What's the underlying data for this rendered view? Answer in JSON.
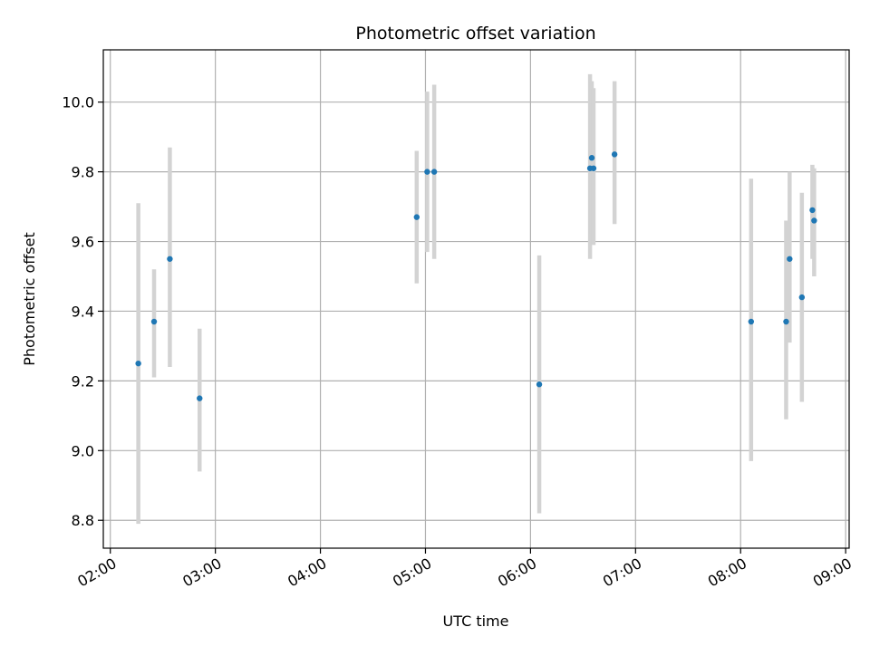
{
  "chart_data": {
    "type": "scatter",
    "title": "Photometric offset variation",
    "xlabel": "UTC time",
    "ylabel": "Photometric offset",
    "x_axis_type": "time",
    "xlim": [
      "01:56",
      "09:02"
    ],
    "ylim": [
      8.72,
      10.15
    ],
    "x_ticks": [
      "02:00",
      "03:00",
      "04:00",
      "05:00",
      "06:00",
      "07:00",
      "08:00",
      "09:00"
    ],
    "y_ticks": [
      8.8,
      9.0,
      9.2,
      9.4,
      9.6,
      9.8,
      10.0
    ],
    "y_tick_labels": [
      "8.8",
      "9.0",
      "9.2",
      "9.4",
      "9.6",
      "9.8",
      "10.0"
    ],
    "grid": true,
    "legend": false,
    "colors": {
      "points": "#1f77b4",
      "errorbars": "#d3d3d3",
      "grid": "#b0b0b0",
      "axes": "#000000"
    },
    "points": [
      {
        "x": "02:16",
        "y": 9.25,
        "ylow": 8.79,
        "yhigh": 9.71
      },
      {
        "x": "02:25",
        "y": 9.37,
        "ylow": 9.21,
        "yhigh": 9.52
      },
      {
        "x": "02:34",
        "y": 9.55,
        "ylow": 9.24,
        "yhigh": 9.87
      },
      {
        "x": "02:51",
        "y": 9.15,
        "ylow": 8.94,
        "yhigh": 9.35
      },
      {
        "x": "04:55",
        "y": 9.67,
        "ylow": 9.48,
        "yhigh": 9.86
      },
      {
        "x": "05:01",
        "y": 9.8,
        "ylow": 9.57,
        "yhigh": 10.03
      },
      {
        "x": "05:05",
        "y": 9.8,
        "ylow": 9.55,
        "yhigh": 10.05
      },
      {
        "x": "06:05",
        "y": 9.19,
        "ylow": 8.82,
        "yhigh": 9.56
      },
      {
        "x": "06:34",
        "y": 9.81,
        "ylow": 9.55,
        "yhigh": 10.08
      },
      {
        "x": "06:35",
        "y": 9.84,
        "ylow": 9.62,
        "yhigh": 10.06
      },
      {
        "x": "06:36",
        "y": 9.81,
        "ylow": 9.59,
        "yhigh": 10.04
      },
      {
        "x": "06:48",
        "y": 9.85,
        "ylow": 9.65,
        "yhigh": 10.06
      },
      {
        "x": "08:06",
        "y": 9.37,
        "ylow": 8.97,
        "yhigh": 9.78
      },
      {
        "x": "08:26",
        "y": 9.37,
        "ylow": 9.09,
        "yhigh": 9.66
      },
      {
        "x": "08:28",
        "y": 9.55,
        "ylow": 9.31,
        "yhigh": 9.8
      },
      {
        "x": "08:35",
        "y": 9.44,
        "ylow": 9.14,
        "yhigh": 9.74
      },
      {
        "x": "08:41",
        "y": 9.69,
        "ylow": 9.55,
        "yhigh": 9.82
      },
      {
        "x": "08:42",
        "y": 9.66,
        "ylow": 9.5,
        "yhigh": 9.81
      }
    ]
  }
}
